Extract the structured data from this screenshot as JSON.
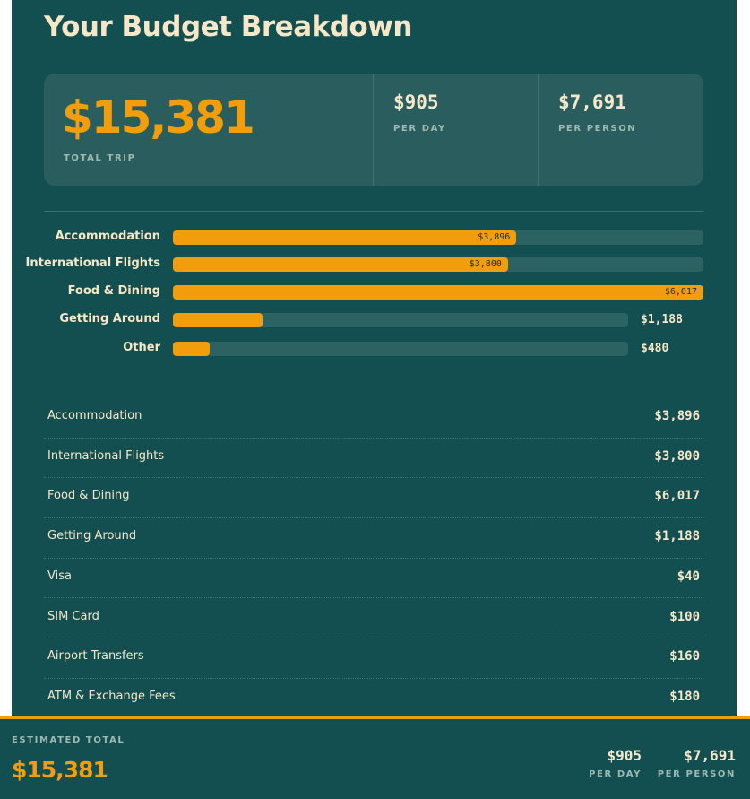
{
  "title": "Your Budget Breakdown",
  "summary": {
    "total": "$15,381",
    "total_label": "TOTAL TRIP",
    "per_day": "$905",
    "per_day_label": "PER DAY",
    "per_person": "$7,691",
    "per_person_label": "PER PERSON"
  },
  "chart": {
    "type": "bar",
    "categories": [
      "Accommodation",
      "International Flights",
      "Food & Dining",
      "Getting Around",
      "Other"
    ],
    "values": [
      3896,
      3800,
      6017,
      1188,
      480
    ],
    "value_labels": [
      "$3,896",
      "$3,800",
      "$6,017",
      "$1,188",
      "$480"
    ],
    "color": "#f29d0c"
  },
  "items": [
    {
      "name": "Accommodation",
      "amount": "$3,896"
    },
    {
      "name": "International Flights",
      "amount": "$3,800"
    },
    {
      "name": "Food & Dining",
      "amount": "$6,017"
    },
    {
      "name": "Getting Around",
      "amount": "$1,188"
    },
    {
      "name": "Visa",
      "amount": "$40"
    },
    {
      "name": "SIM Card",
      "amount": "$100"
    },
    {
      "name": "Airport Transfers",
      "amount": "$160"
    },
    {
      "name": "ATM & Exchange Fees",
      "amount": "$180"
    }
  ],
  "footer": {
    "label": "ESTIMATED TOTAL",
    "total": "$15,381",
    "per_day": "$905",
    "per_day_label": "PER DAY",
    "per_person": "$7,691",
    "per_person_label": "PER PERSON"
  }
}
